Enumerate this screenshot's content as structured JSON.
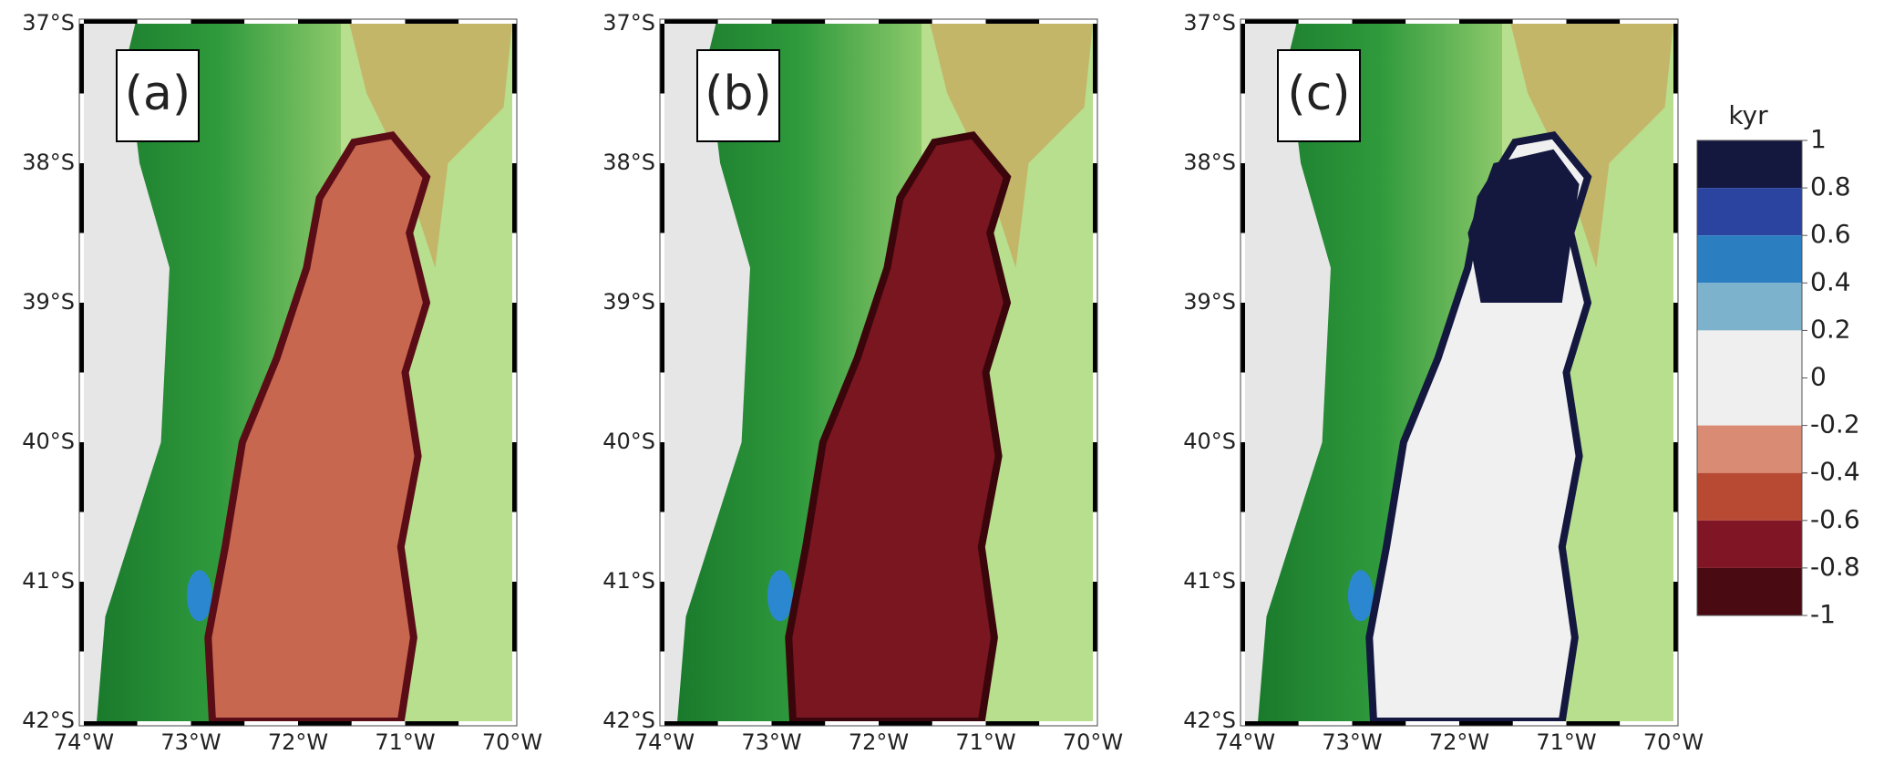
{
  "panels": [
    {
      "label": "(a)",
      "fill": "#c8674f",
      "edge": "#5a0d16"
    },
    {
      "label": "(b)",
      "fill": "#7a1620",
      "edge": "#3a060c"
    },
    {
      "label": "(c)",
      "fill": "#f0f0f0",
      "edge": "#14183f"
    }
  ],
  "lat_labels": [
    "37°S",
    "38°S",
    "39°S",
    "40°S",
    "41°S",
    "42°S"
  ],
  "lon_labels": [
    "74°W",
    "73°W",
    "72°W",
    "71°W",
    "70°W"
  ],
  "colorbar": {
    "title": "kyr",
    "lim": [
      -1,
      1
    ],
    "ticks": [
      1,
      0.8,
      0.6,
      0.4,
      0.2,
      0,
      -0.2,
      -0.4,
      -0.6,
      -0.8,
      -1
    ],
    "colors": [
      "#14183f",
      "#2a44a0",
      "#2b7fc0",
      "#7db2cc",
      "#efefef",
      "#efefef",
      "#d98b74",
      "#b84a33",
      "#801525",
      "#4a0a12"
    ]
  }
}
